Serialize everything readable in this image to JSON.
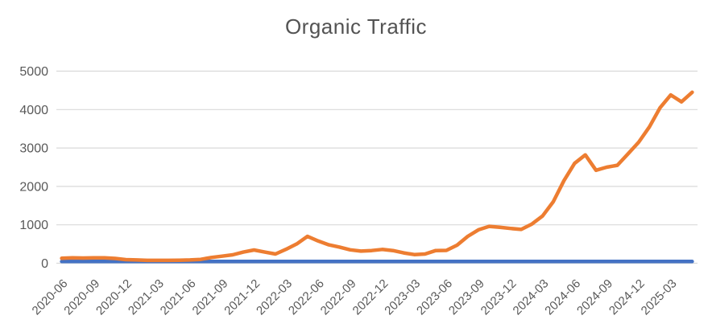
{
  "chart_data": {
    "type": "line",
    "title": "Organic Traffic",
    "grid": true,
    "legend": false,
    "grid_color": "#D9D9D9",
    "text_color": "#595959",
    "x_tick_every": 3,
    "x_tick_labels": [
      "2020-06",
      "2020-09",
      "2020-12",
      "2021-03",
      "2021-06",
      "2021-09",
      "2021-12",
      "2022-03",
      "2022-06",
      "2022-09",
      "2022-12",
      "2023-03",
      "2023-06",
      "2023-09",
      "2023-12",
      "2024-03",
      "2024-06",
      "2024-09",
      "2024-12",
      "2025-03"
    ],
    "y_axis": {
      "min": 0,
      "max": 5000,
      "step": 1000,
      "tick_labels": [
        "0",
        "1000",
        "2000",
        "3000",
        "4000",
        "5000"
      ]
    },
    "x": [
      "2020-06",
      "2020-07",
      "2020-08",
      "2020-09",
      "2020-10",
      "2020-11",
      "2020-12",
      "2021-01",
      "2021-02",
      "2021-03",
      "2021-04",
      "2021-05",
      "2021-06",
      "2021-07",
      "2021-08",
      "2021-09",
      "2021-10",
      "2021-11",
      "2021-12",
      "2022-01",
      "2022-02",
      "2022-03",
      "2022-04",
      "2022-05",
      "2022-06",
      "2022-07",
      "2022-08",
      "2022-09",
      "2022-10",
      "2022-11",
      "2022-12",
      "2023-01",
      "2023-02",
      "2023-03",
      "2023-04",
      "2023-05",
      "2023-06",
      "2023-07",
      "2023-08",
      "2023-09",
      "2023-10",
      "2023-11",
      "2023-12",
      "2024-01",
      "2024-02",
      "2024-03",
      "2024-04",
      "2024-05",
      "2024-06",
      "2024-07",
      "2024-08",
      "2024-09",
      "2024-10",
      "2024-11",
      "2024-12",
      "2025-01",
      "2025-02",
      "2025-03",
      "2025-04",
      "2025-05"
    ],
    "series": [
      {
        "id": "blue-flat-line",
        "color": "#4472C4",
        "values": [
          45,
          45,
          45,
          45,
          45,
          45,
          45,
          45,
          45,
          45,
          45,
          45,
          45,
          45,
          45,
          45,
          45,
          45,
          45,
          45,
          45,
          45,
          45,
          45,
          45,
          45,
          45,
          45,
          45,
          45,
          45,
          45,
          45,
          45,
          45,
          45,
          45,
          45,
          45,
          45,
          45,
          45,
          45,
          45,
          45,
          45,
          45,
          45,
          45,
          45,
          45,
          45,
          45,
          45,
          45,
          45,
          45,
          45,
          45,
          45
        ]
      },
      {
        "id": "organic-traffic-line",
        "color": "#ED7D31",
        "values": [
          130,
          140,
          135,
          140,
          140,
          125,
          95,
          85,
          75,
          75,
          75,
          80,
          85,
          100,
          150,
          185,
          220,
          290,
          345,
          290,
          240,
          365,
          505,
          700,
          580,
          480,
          420,
          350,
          315,
          330,
          360,
          330,
          270,
          225,
          240,
          330,
          335,
          470,
          700,
          870,
          960,
          935,
          905,
          880,
          1020,
          1230,
          1600,
          2150,
          2600,
          2820,
          2420,
          2500,
          2550,
          2850,
          3150,
          3550,
          4050,
          4380,
          4200,
          4450
        ]
      }
    ]
  }
}
